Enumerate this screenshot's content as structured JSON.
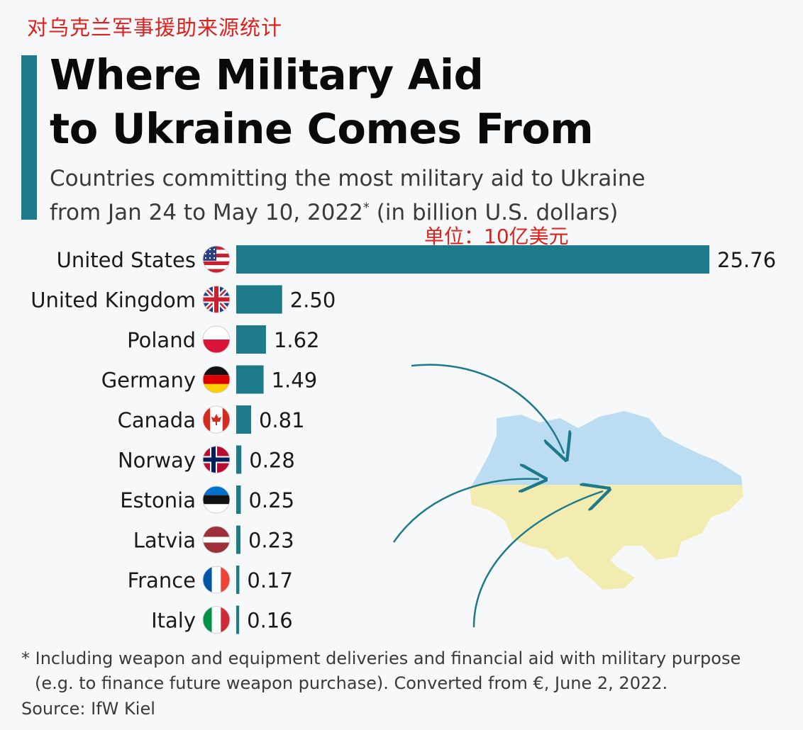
{
  "header": {
    "zh_title": "对乌克兰军事援助来源统计",
    "title_line1": "Where Military Aid",
    "title_line2": "to Ukraine Comes From",
    "subtitle_line1": "Countries committing the most military aid to Ukraine",
    "subtitle_line2_a": "from Jan 24 to May 10, 2022",
    "subtitle_star": "*",
    "subtitle_line2_b": " (in billion U.S. dollars)",
    "unit_note": "单位：10亿美元"
  },
  "colors": {
    "bar": "#1d7a8a",
    "accent": "#1d7a8a",
    "map_blue": "#bcdcf2",
    "map_yellow": "#f3ecb0",
    "arrow": "#1d7a8a"
  },
  "chart_data": {
    "type": "bar",
    "orientation": "horizontal",
    "categories": [
      "United States",
      "United Kingdom",
      "Poland",
      "Germany",
      "Canada",
      "Norway",
      "Estonia",
      "Latvia",
      "France",
      "Italy"
    ],
    "values": [
      25.76,
      2.5,
      1.62,
      1.49,
      0.81,
      0.28,
      0.25,
      0.23,
      0.17,
      0.16
    ],
    "value_labels": [
      "25.76",
      "2.50",
      "1.62",
      "1.49",
      "0.81",
      "0.28",
      "0.25",
      "0.23",
      "0.17",
      "0.16"
    ],
    "flags": [
      "us-flag-icon",
      "uk-flag-icon",
      "poland-flag-icon",
      "germany-flag-icon",
      "canada-flag-icon",
      "norway-flag-icon",
      "estonia-flag-icon",
      "latvia-flag-icon",
      "france-flag-icon",
      "italy-flag-icon"
    ],
    "xlim": [
      0,
      25.76
    ],
    "grid": false,
    "legend": "none",
    "decoration": "ukraine-map-with-arrows"
  },
  "footer": {
    "footnote_line1": "* Including weapon and equipment deliveries and financial aid with military purpose",
    "footnote_line2": "(e.g. to finance future weapon purchase). Converted from €, June 2, 2022.",
    "source": "Source: IfW Kiel"
  }
}
